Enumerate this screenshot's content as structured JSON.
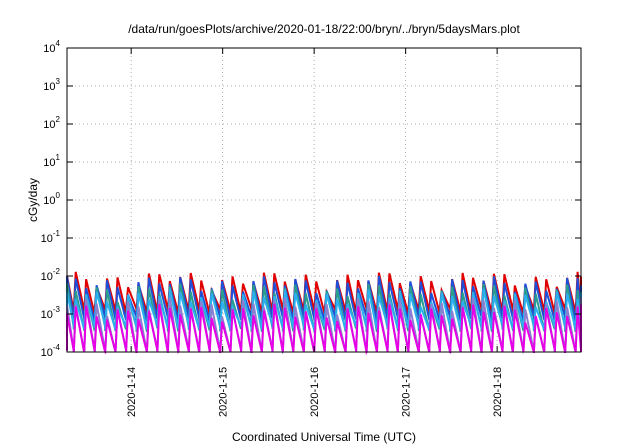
{
  "chart_data": {
    "type": "line",
    "title": "/data/run/goesPlots/archive/2020-01-18/22:00/bryn/../bryn/5daysMars.plot",
    "xlabel": "Coordinated Universal Time (UTC)",
    "ylabel": "cGy/day",
    "yscale": "log",
    "ylim": [
      0.0001,
      10000
    ],
    "y_ticks": [
      {
        "value": 0.0001,
        "base": "10",
        "exp": "-4"
      },
      {
        "value": 0.001,
        "base": "10",
        "exp": "-3"
      },
      {
        "value": 0.01,
        "base": "10",
        "exp": "-2"
      },
      {
        "value": 0.1,
        "base": "10",
        "exp": "-1"
      },
      {
        "value": 1,
        "base": "10",
        "exp": "0"
      },
      {
        "value": 10,
        "base": "10",
        "exp": "1"
      },
      {
        "value": 100,
        "base": "10",
        "exp": "2"
      },
      {
        "value": 1000,
        "base": "10",
        "exp": "3"
      },
      {
        "value": 10000,
        "base": "10",
        "exp": "4"
      }
    ],
    "xlim": [
      "2020-01-13 07:10",
      "2020-01-18 22:00"
    ],
    "x_ticks": [
      {
        "value": "2020-01-14 00:00",
        "label": "2020-1-14"
      },
      {
        "value": "2020-01-15 00:00",
        "label": "2020-1-15"
      },
      {
        "value": "2020-01-16 00:00",
        "label": "2020-1-16"
      },
      {
        "value": "2020-01-17 00:00",
        "label": "2020-1-17"
      },
      {
        "value": "2020-01-18 00:00",
        "label": "2020-1-18"
      }
    ],
    "grid": true,
    "pattern": {
      "type": "sawtooth",
      "cycles_per_day": 8.75,
      "note_series": "repeating orbital dose peaks, each cycle rising sharply then decaying"
    },
    "series": [
      {
        "color": "#e00000",
        "peak": 0.0085,
        "trough": 0.0012
      },
      {
        "color": "#1f4fd6",
        "peak": 0.0065,
        "trough": 0.00075
      },
      {
        "color": "#2a9d8f",
        "peak": 0.0042,
        "trough": 0.0004
      },
      {
        "color": "#2ab0f0",
        "peak": 0.003,
        "trough": 0.00045
      },
      {
        "color": "#8a7fd0",
        "peak": 0.0018,
        "trough": 0.0001
      },
      {
        "color": "#e600e6",
        "peak": 0.0012,
        "trough": 0.0001
      }
    ]
  }
}
